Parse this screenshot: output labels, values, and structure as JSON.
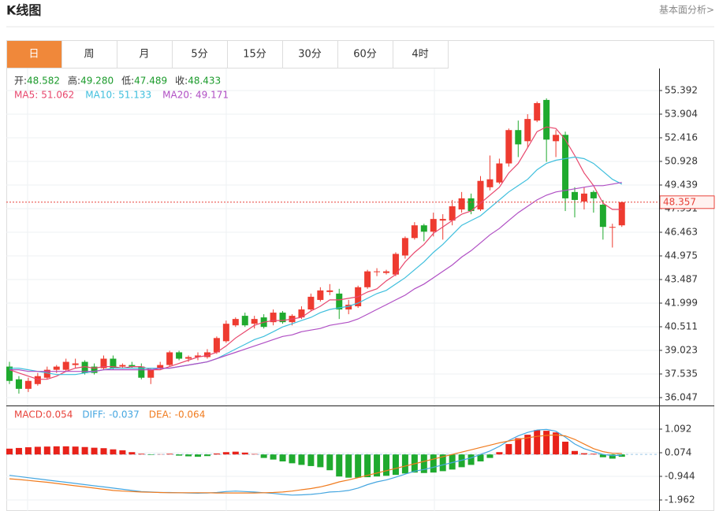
{
  "header": {
    "title": "K线图",
    "link": "基本面分析>"
  },
  "tabs": {
    "items": [
      "日",
      "周",
      "月",
      "5分",
      "15分",
      "30分",
      "60分",
      "4时"
    ],
    "active": 0,
    "active_color": "#f0883a"
  },
  "chart_data": [
    {
      "type": "candlestick",
      "up_color": "#ee3b30",
      "down_color": "#1faa2e",
      "ohlc_legend": [
        {
          "label": "开:",
          "value": 48.582
        },
        {
          "label": "高:",
          "value": 49.28,
          "value_label": "49.280"
        },
        {
          "label": "低:",
          "value": 47.489
        },
        {
          "label": "收:",
          "value": 48.433
        }
      ],
      "ylim": [
        35.55,
        56.78
      ],
      "yticks": [
        55.392,
        53.904,
        52.416,
        50.928,
        49.439,
        47.951,
        46.463,
        44.975,
        43.487,
        41.999,
        40.511,
        39.023,
        37.535,
        36.047
      ],
      "last_price": 48.357,
      "last_price_color": "#e8423a",
      "open": [
        38.0,
        37.2,
        36.6,
        36.9,
        37.3,
        37.8,
        37.8,
        38.1,
        38.3,
        38.0,
        37.9,
        38.5,
        38.0,
        38.1,
        38.0,
        37.3,
        37.9,
        38.1,
        38.9,
        38.5,
        38.6,
        38.6,
        38.9,
        39.6,
        40.6,
        41.2,
        40.7,
        41.1,
        40.8,
        41.4,
        40.8,
        41.1,
        41.6,
        42.2,
        42.7,
        42.6,
        41.6,
        41.8,
        43.0,
        44.0,
        43.9,
        43.8,
        45.0,
        46.1,
        46.9,
        46.5,
        47.2,
        47.2,
        47.9,
        48.6,
        47.9,
        49.3,
        49.6,
        50.8,
        52.9,
        52.2,
        53.5,
        54.8,
        52.2,
        52.6,
        49.0,
        48.4,
        49.0,
        48.2,
        46.8,
        46.9
      ],
      "high": [
        38.3,
        37.4,
        37.3,
        37.6,
        38.0,
        38.1,
        38.5,
        38.5,
        38.4,
        38.2,
        38.7,
        38.7,
        38.2,
        38.3,
        38.2,
        37.9,
        38.3,
        39.0,
        39.0,
        38.7,
        38.9,
        39.1,
        39.9,
        40.9,
        41.1,
        41.4,
        41.2,
        41.3,
        41.6,
        41.5,
        41.3,
        41.8,
        42.6,
        43.0,
        43.2,
        42.9,
        42.2,
        43.1,
        44.1,
        44.2,
        44.1,
        45.2,
        46.2,
        47.1,
        47.0,
        47.7,
        47.6,
        48.5,
        49.0,
        48.9,
        50.0,
        51.3,
        51.1,
        53.0,
        53.5,
        53.9,
        54.7,
        54.9,
        52.9,
        52.8,
        49.3,
        49.3,
        49.1,
        48.5,
        47.0,
        48.4
      ],
      "low": [
        36.9,
        36.3,
        36.4,
        36.8,
        37.2,
        37.6,
        37.7,
        37.9,
        37.5,
        37.5,
        37.8,
        37.8,
        37.9,
        37.9,
        37.2,
        36.9,
        37.8,
        38.0,
        38.4,
        38.3,
        38.4,
        38.5,
        38.8,
        39.5,
        40.5,
        40.5,
        40.4,
        40.4,
        40.6,
        40.7,
        40.6,
        41.0,
        41.5,
        42.1,
        42.5,
        41.0,
        41.3,
        41.7,
        42.9,
        43.7,
        43.8,
        43.7,
        44.8,
        46.0,
        45.9,
        46.2,
        46.0,
        46.9,
        47.7,
        47.6,
        47.8,
        49.1,
        49.5,
        50.6,
        51.2,
        51.8,
        53.4,
        50.9,
        51.2,
        47.8,
        47.4,
        47.9,
        47.7,
        46.0,
        45.5,
        46.8
      ],
      "close": [
        37.1,
        36.6,
        37.1,
        37.4,
        37.8,
        38.0,
        38.3,
        38.2,
        37.6,
        37.6,
        38.5,
        37.9,
        38.1,
        38.0,
        37.3,
        37.8,
        38.1,
        38.9,
        38.5,
        38.6,
        38.7,
        38.9,
        39.8,
        40.7,
        41.0,
        40.6,
        41.0,
        40.5,
        41.4,
        40.8,
        41.2,
        41.6,
        42.4,
        42.8,
        42.8,
        41.6,
        41.9,
        43.0,
        44.0,
        44.0,
        44.0,
        45.1,
        46.1,
        46.9,
        46.5,
        47.3,
        47.3,
        48.1,
        48.6,
        47.8,
        49.7,
        49.8,
        50.8,
        52.9,
        52.0,
        53.6,
        54.6,
        52.3,
        52.6,
        48.6,
        48.5,
        48.9,
        48.6,
        46.8,
        46.8,
        48.36
      ],
      "series": [
        {
          "name": "MA5:",
          "legend_value": 51.062,
          "color": "#e8476d",
          "values": [
            37.8,
            37.6,
            37.4,
            37.2,
            37.2,
            37.4,
            37.7,
            37.9,
            38.0,
            37.9,
            38.0,
            38.0,
            37.9,
            38.0,
            38.0,
            37.8,
            37.8,
            38.0,
            38.2,
            38.4,
            38.6,
            38.7,
            38.9,
            39.3,
            39.8,
            40.2,
            40.6,
            40.8,
            40.9,
            40.9,
            41.0,
            41.1,
            41.5,
            41.8,
            42.2,
            42.2,
            42.3,
            42.4,
            42.7,
            42.9,
            43.4,
            43.8,
            44.6,
            45.2,
            45.7,
            46.4,
            46.8,
            47.2,
            47.6,
            47.8,
            48.3,
            48.8,
            49.3,
            50.2,
            50.8,
            51.8,
            52.8,
            53.1,
            53.0,
            52.3,
            51.3,
            50.2,
            49.4,
            48.3,
            47.9,
            47.9
          ]
        },
        {
          "name": "MA10:",
          "legend_value": 51.133,
          "color": "#3fbfdd",
          "values": [
            37.9,
            37.9,
            37.8,
            37.7,
            37.6,
            37.5,
            37.5,
            37.5,
            37.6,
            37.7,
            37.8,
            37.9,
            37.9,
            37.9,
            37.9,
            37.9,
            37.9,
            37.9,
            38.0,
            38.1,
            38.2,
            38.3,
            38.5,
            38.8,
            39.1,
            39.4,
            39.7,
            39.9,
            40.2,
            40.5,
            40.7,
            40.9,
            41.1,
            41.4,
            41.6,
            41.7,
            41.8,
            42.0,
            42.3,
            42.6,
            42.8,
            43.2,
            43.6,
            44.1,
            44.6,
            45.2,
            45.7,
            46.3,
            46.9,
            47.2,
            47.5,
            48.0,
            48.5,
            49.0,
            49.4,
            49.8,
            50.4,
            50.8,
            51.0,
            51.1,
            51.2,
            51.1,
            50.8,
            50.3,
            49.8,
            49.5
          ]
        },
        {
          "name": "MA20:",
          "legend_value": 49.171,
          "color": "#b04fc4",
          "values": [
            37.8,
            37.8,
            37.7,
            37.7,
            37.7,
            37.7,
            37.7,
            37.7,
            37.7,
            37.7,
            37.8,
            37.8,
            37.8,
            37.8,
            37.8,
            37.8,
            37.9,
            37.9,
            38.0,
            38.1,
            38.2,
            38.3,
            38.5,
            38.7,
            38.9,
            39.1,
            39.3,
            39.5,
            39.7,
            39.9,
            40.0,
            40.2,
            40.3,
            40.4,
            40.6,
            40.7,
            40.8,
            41.0,
            41.3,
            41.6,
            41.9,
            42.2,
            42.5,
            42.9,
            43.2,
            43.6,
            44.0,
            44.4,
            44.9,
            45.3,
            45.8,
            46.3,
            46.7,
            47.2,
            47.7,
            48.1,
            48.5,
            48.8,
            49.0,
            49.1,
            49.2,
            49.3,
            49.4,
            49.4,
            49.5,
            49.6
          ]
        }
      ]
    },
    {
      "type": "macd",
      "ylim": [
        -2.437,
        2.076
      ],
      "yticks": [
        1.092,
        0.074,
        -0.944,
        -1.962
      ],
      "histogram": {
        "name": "MACD:",
        "legend_value": 0.054,
        "color": "#e8423a",
        "up_color": "#e8221a",
        "down_color": "#1faa2e",
        "values": [
          0.25,
          0.28,
          0.31,
          0.33,
          0.34,
          0.35,
          0.35,
          0.34,
          0.32,
          0.29,
          0.27,
          0.22,
          0.18,
          0.1,
          0.03,
          -0.02,
          0.01,
          0.03,
          -0.05,
          -0.08,
          -0.1,
          -0.07,
          0.04,
          0.1,
          0.12,
          0.08,
          0.02,
          -0.15,
          -0.22,
          -0.3,
          -0.38,
          -0.45,
          -0.5,
          -0.55,
          -0.68,
          -0.95,
          -1.0,
          -1.0,
          -0.98,
          -0.95,
          -0.92,
          -0.88,
          -0.82,
          -0.78,
          -0.8,
          -0.78,
          -0.72,
          -0.65,
          -0.55,
          -0.45,
          -0.3,
          -0.15,
          0.1,
          0.45,
          0.7,
          0.85,
          1.05,
          1.02,
          0.95,
          0.55,
          0.15,
          0.05,
          0.03,
          -0.12,
          -0.18,
          -0.1
        ]
      },
      "series": [
        {
          "name": "DIFF:",
          "legend_value": -0.037,
          "color": "#45a6e0",
          "values": [
            -0.9,
            -0.95,
            -1.0,
            -1.05,
            -1.1,
            -1.15,
            -1.2,
            -1.25,
            -1.3,
            -1.35,
            -1.4,
            -1.45,
            -1.5,
            -1.55,
            -1.6,
            -1.62,
            -1.64,
            -1.64,
            -1.65,
            -1.66,
            -1.67,
            -1.66,
            -1.64,
            -1.6,
            -1.58,
            -1.6,
            -1.62,
            -1.65,
            -1.68,
            -1.72,
            -1.75,
            -1.74,
            -1.72,
            -1.68,
            -1.62,
            -1.6,
            -1.55,
            -1.45,
            -1.3,
            -1.18,
            -1.1,
            -0.98,
            -0.85,
            -0.72,
            -0.65,
            -0.55,
            -0.45,
            -0.35,
            -0.25,
            -0.15,
            0.0,
            0.15,
            0.35,
            0.6,
            0.8,
            0.95,
            1.05,
            1.08,
            1.0,
            0.75,
            0.45,
            0.25,
            0.12,
            0.0,
            -0.05,
            -0.03
          ]
        },
        {
          "name": "DEA:",
          "legend_value": -0.064,
          "color": "#f07b1e",
          "values": [
            -1.05,
            -1.08,
            -1.12,
            -1.16,
            -1.2,
            -1.25,
            -1.3,
            -1.35,
            -1.4,
            -1.45,
            -1.5,
            -1.55,
            -1.58,
            -1.6,
            -1.62,
            -1.63,
            -1.64,
            -1.65,
            -1.65,
            -1.65,
            -1.65,
            -1.65,
            -1.66,
            -1.66,
            -1.66,
            -1.66,
            -1.66,
            -1.65,
            -1.64,
            -1.62,
            -1.58,
            -1.52,
            -1.47,
            -1.4,
            -1.3,
            -1.18,
            -1.1,
            -1.0,
            -0.9,
            -0.8,
            -0.7,
            -0.6,
            -0.5,
            -0.4,
            -0.3,
            -0.2,
            -0.1,
            0.0,
            0.1,
            0.2,
            0.3,
            0.4,
            0.5,
            0.58,
            0.65,
            0.72,
            0.78,
            0.82,
            0.84,
            0.8,
            0.65,
            0.45,
            0.25,
            0.12,
            0.05,
            0.04
          ]
        }
      ]
    }
  ]
}
